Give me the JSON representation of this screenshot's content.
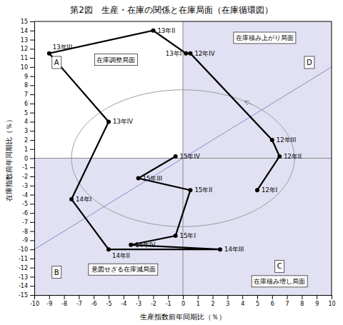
{
  "chart_data": {
    "type": "line",
    "title": "第2図　生産・在庫の関係と在庫局面（在庫循環図）",
    "x_label": "生産指数前年同期比（％）",
    "y_label": "在庫指数前年同期比（％）",
    "point_labels": [
      "12年I",
      "12年II",
      "12年III",
      "12年IV",
      "13年I",
      "13年II",
      "13年III",
      "13年IV",
      "14年I",
      "14年II",
      "14年III",
      "14年IV",
      "15年I",
      "15年II",
      "15年III",
      "15年IV"
    ],
    "x": [
      5.0,
      6.5,
      6.0,
      0.5,
      0.2,
      -2.0,
      -9.0,
      -5.0,
      -7.5,
      -5.0,
      2.5,
      -3.5,
      -0.5,
      0.5,
      -3.0,
      -0.5
    ],
    "values": [
      -3.5,
      0.2,
      2.0,
      11.5,
      11.5,
      14.0,
      11.5,
      4.0,
      -4.5,
      -10.0,
      -10.0,
      -9.5,
      -8.5,
      -3.5,
      -2.2,
      0.2
    ],
    "color": "#000000",
    "marker": "circle",
    "xlim": [
      -10,
      10
    ],
    "ylim": [
      -15,
      15
    ],
    "xticks": [
      -10,
      -9,
      -8,
      -7,
      -6,
      -5,
      -4,
      -3,
      -2,
      -1,
      0,
      1,
      2,
      3,
      4,
      5,
      6,
      7,
      8,
      9,
      10
    ],
    "yticks": [
      -15,
      -14,
      -13,
      -12,
      -11,
      -10,
      -9,
      -8,
      -7,
      -6,
      -5,
      -4,
      -3,
      -2,
      -1,
      0,
      1,
      2,
      3,
      4,
      5,
      6,
      7,
      8,
      9,
      10,
      11,
      12,
      13,
      14,
      15
    ],
    "grid": false,
    "shade_color": "#aaaadd",
    "shaded_regions": [
      {
        "x": [
          0,
          10
        ],
        "y": [
          0,
          15
        ]
      },
      {
        "x": [
          -10,
          0
        ],
        "y": [
          -15,
          0
        ]
      },
      {
        "x": [
          0,
          10
        ],
        "y": [
          -15,
          0
        ]
      }
    ],
    "reference_lines": [
      {
        "x": [
          -10,
          10
        ],
        "y": [
          -10,
          10
        ]
      },
      {
        "x": [
          -10,
          10
        ],
        "y": [
          0,
          0
        ]
      },
      {
        "x": [
          0,
          0
        ],
        "y": [
          -15,
          15
        ]
      }
    ],
    "circle": {
      "center": [
        0,
        0
      ],
      "radius": 7.5,
      "arrow_angle": 52,
      "color": "#999999"
    },
    "annotations": [
      {
        "text": "A",
        "x": -8.5,
        "y": 10.5
      },
      {
        "text": "B",
        "x": -8.5,
        "y": -12.5
      },
      {
        "text": "C",
        "x": 6.5,
        "y": -13.5
      },
      {
        "text": "D",
        "x": 8.5,
        "y": 10.5
      },
      {
        "text": "在庫調整局面",
        "x": -4.5,
        "y": 10.8
      },
      {
        "text": "在庫積み上がり局面",
        "x": 5.5,
        "y": 13.2
      },
      {
        "text": "意図せざる在庫減局面",
        "x": -4.0,
        "y": -12.2
      },
      {
        "text": "在庫積み増し局面",
        "x": 6.5,
        "y": -13.5
      }
    ]
  }
}
